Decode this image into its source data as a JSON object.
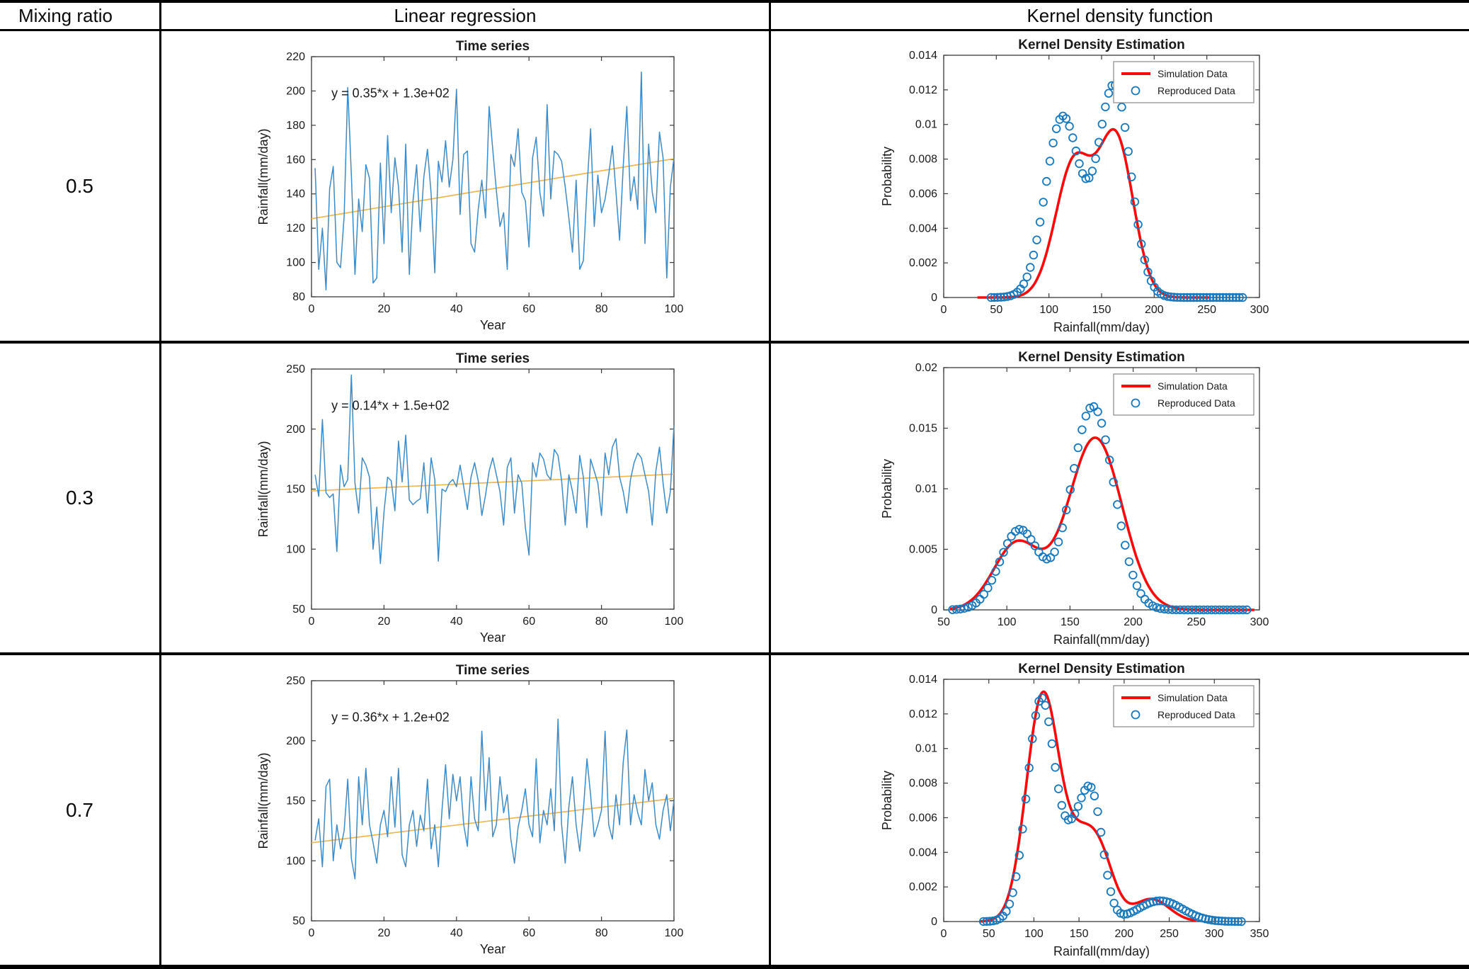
{
  "header": {
    "col1": "Mixing ratio",
    "col2": "Linear regression",
    "col3": "Kernel density function"
  },
  "rows": [
    {
      "ratio": "0.5"
    },
    {
      "ratio": "0.3"
    },
    {
      "ratio": "0.7"
    }
  ],
  "colors": {
    "series_blue": "#3d8bc9",
    "trend_orange": "#f0b64f",
    "sim_red": "#f30d0d",
    "rep_blue": "#1778be",
    "axis": "#3a3a3a"
  },
  "chart_data": [
    {
      "id": "ts_05",
      "chart": "timeseries",
      "type": "line",
      "title": "Time series",
      "annotation": "y = 0.35*x + 1.3e+02",
      "xlabel": "Year",
      "ylabel": "Rainfall(mm/day)",
      "xlim": [
        0,
        100
      ],
      "ylim": [
        80,
        220
      ],
      "xticks": [
        0,
        20,
        40,
        60,
        80,
        100
      ],
      "yticks": [
        80,
        100,
        120,
        140,
        160,
        180,
        200,
        220
      ],
      "trend": {
        "y_start": 125.5,
        "y_end": 160.5
      },
      "values": [
        155,
        96,
        120,
        84,
        143,
        156,
        100,
        97,
        127,
        202,
        151,
        93,
        137,
        118,
        157,
        149,
        88,
        91,
        158,
        111,
        174,
        129,
        161,
        144,
        106,
        169,
        93,
        136,
        157,
        118,
        150,
        166,
        140,
        94,
        159,
        147,
        171,
        144,
        160,
        201,
        128,
        163,
        165,
        111,
        106,
        131,
        148,
        126,
        191,
        166,
        142,
        121,
        129,
        96,
        163,
        156,
        178,
        141,
        136,
        109,
        161,
        173,
        141,
        127,
        192,
        137,
        165,
        163,
        159,
        144,
        126,
        106,
        148,
        96,
        101,
        143,
        178,
        121,
        151,
        129,
        137,
        151,
        168,
        141,
        113,
        156,
        191,
        136,
        150,
        131,
        211,
        111,
        169,
        141,
        129,
        176,
        161,
        91,
        144,
        161
      ]
    },
    {
      "id": "kde_05",
      "chart": "kde",
      "type": "line+scatter",
      "title": "Kernel Density Estimation",
      "xlabel": "Rainfall(mm/day)",
      "ylabel": "Probability",
      "xlim": [
        0,
        300
      ],
      "ylim": [
        0,
        0.014
      ],
      "xticks": [
        0,
        50,
        100,
        150,
        200,
        250,
        300
      ],
      "yticks": [
        0,
        0.002,
        0.004,
        0.006,
        0.008,
        0.01,
        0.012,
        0.014
      ],
      "legend": [
        "Simulation Data",
        "Reproduced Data"
      ],
      "sim_curve": {
        "xrange": [
          32,
          252
        ],
        "gaussians": [
          [
            0.0078,
            124,
            25
          ],
          [
            0.009,
            164,
            23
          ]
        ]
      },
      "rep_points": {
        "xrange": [
          45,
          284
        ],
        "count": 78,
        "gaussians": [
          [
            0.0104,
            113,
            23
          ],
          [
            0.0122,
            162,
            22
          ]
        ]
      }
    },
    {
      "id": "ts_03",
      "chart": "timeseries",
      "type": "line",
      "title": "Time series",
      "annotation": "y = 0.14*x + 1.5e+02",
      "xlabel": "Year",
      "ylabel": "Rainfall(mm/day)",
      "xlim": [
        0,
        100
      ],
      "ylim": [
        50,
        250
      ],
      "xticks": [
        0,
        20,
        40,
        60,
        80,
        100
      ],
      "yticks": [
        50,
        100,
        150,
        200,
        250
      ],
      "trend": {
        "y_start": 148.5,
        "y_end": 162.5
      },
      "values": [
        162,
        144,
        208,
        147,
        143,
        146,
        98,
        170,
        152,
        158,
        245,
        155,
        130,
        176,
        170,
        160,
        100,
        135,
        88,
        131,
        160,
        157,
        132,
        190,
        156,
        195,
        141,
        137,
        140,
        142,
        172,
        130,
        176,
        158,
        90,
        150,
        148,
        155,
        158,
        152,
        170,
        152,
        133,
        160,
        172,
        157,
        128,
        145,
        165,
        176,
        162,
        148,
        120,
        168,
        176,
        130,
        162,
        155,
        118,
        95,
        172,
        160,
        180,
        175,
        162,
        158,
        183,
        178,
        157,
        120,
        162,
        148,
        130,
        178,
        160,
        118,
        175,
        165,
        155,
        128,
        180,
        162,
        185,
        192,
        160,
        148,
        130,
        158,
        172,
        180,
        176,
        162,
        148,
        120,
        165,
        185,
        155,
        130,
        148,
        203
      ]
    },
    {
      "id": "kde_03",
      "chart": "kde",
      "type": "line+scatter",
      "title": "Kernel Density Estimation",
      "xlabel": "Rainfall(mm/day)",
      "ylabel": "Probability",
      "xlim": [
        50,
        300
      ],
      "ylim": [
        0,
        0.02
      ],
      "xticks": [
        50,
        100,
        150,
        200,
        250,
        300
      ],
      "yticks": [
        0,
        0.005,
        0.01,
        0.015,
        0.02
      ],
      "legend": [
        "Simulation Data",
        "Reproduced Data"
      ],
      "sim_curve": {
        "xrange": [
          55,
          296
        ],
        "gaussians": [
          [
            0.0055,
            108,
            26
          ],
          [
            0.0142,
            170,
            30
          ]
        ]
      },
      "rep_points": {
        "xrange": [
          57,
          290
        ],
        "count": 76,
        "gaussians": [
          [
            0.0066,
            110,
            22
          ],
          [
            0.0168,
            168,
            24
          ]
        ]
      }
    },
    {
      "id": "ts_07",
      "chart": "timeseries",
      "type": "line",
      "title": "Time series",
      "annotation": "y = 0.36*x + 1.2e+02",
      "xlabel": "Year",
      "ylabel": "Rainfall(mm/day)",
      "xlim": [
        0,
        100
      ],
      "ylim": [
        50,
        250
      ],
      "xticks": [
        0,
        20,
        40,
        60,
        80,
        100
      ],
      "yticks": [
        50,
        100,
        150,
        200,
        250
      ],
      "trend": {
        "y_start": 115,
        "y_end": 152
      },
      "values": [
        117,
        135,
        95,
        162,
        168,
        100,
        130,
        110,
        125,
        168,
        102,
        85,
        170,
        130,
        177,
        130,
        115,
        98,
        130,
        142,
        120,
        170,
        128,
        177,
        105,
        95,
        130,
        142,
        112,
        138,
        125,
        168,
        110,
        130,
        95,
        142,
        180,
        135,
        172,
        150,
        170,
        130,
        112,
        170,
        135,
        125,
        208,
        142,
        186,
        120,
        130,
        170,
        140,
        155,
        118,
        98,
        128,
        142,
        160,
        130,
        120,
        185,
        115,
        142,
        130,
        160,
        125,
        218,
        130,
        98,
        145,
        170,
        130,
        108,
        142,
        185,
        155,
        120,
        130,
        142,
        208,
        130,
        118,
        155,
        130,
        182,
        209,
        130,
        155,
        140,
        130,
        176,
        150,
        165,
        130,
        118,
        142,
        155,
        125,
        150
      ]
    },
    {
      "id": "kde_07",
      "chart": "kde",
      "type": "line+scatter",
      "title": "Kernel Density Estimation",
      "xlabel": "Rainfall(mm/day)",
      "ylabel": "Probability",
      "xlim": [
        0,
        350
      ],
      "ylim": [
        0,
        0.014
      ],
      "xticks": [
        0,
        50,
        100,
        150,
        200,
        250,
        300,
        350
      ],
      "yticks": [
        0,
        0.002,
        0.004,
        0.006,
        0.008,
        0.01,
        0.012,
        0.014
      ],
      "legend": [
        "Simulation Data",
        "Reproduced Data"
      ],
      "sim_curve": {
        "xrange": [
          40,
          280
        ],
        "gaussians": [
          [
            0.0131,
            110,
            26
          ],
          [
            0.0038,
            152,
            24
          ],
          [
            0.003,
            175,
            22
          ],
          [
            0.0013,
            230,
            28
          ]
        ]
      },
      "rep_points": {
        "xrange": [
          44,
          330
        ],
        "count": 80,
        "gaussians": [
          [
            0.0128,
            108,
            22
          ],
          [
            0.005,
            150,
            22
          ],
          [
            0.0045,
            167,
            16
          ],
          [
            0.0012,
            240,
            35
          ]
        ]
      }
    }
  ]
}
